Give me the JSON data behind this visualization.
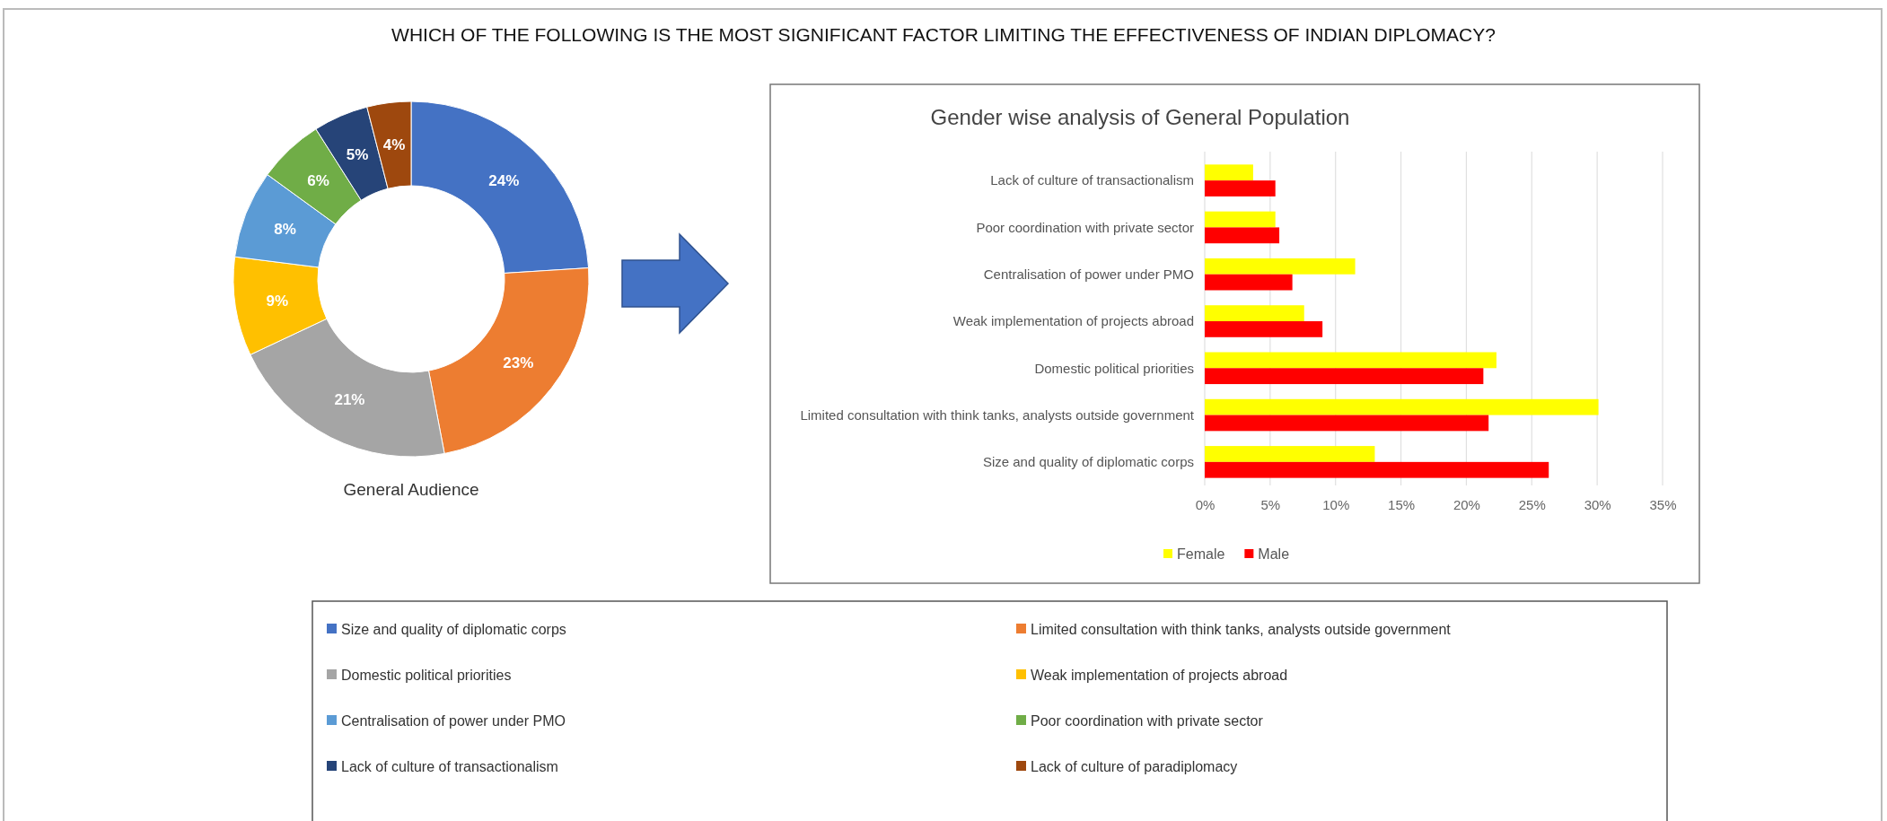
{
  "chart_data": [
    {
      "type": "donut",
      "title": "WHICH OF THE FOLLOWING IS THE MOST SIGNIFICANT FACTOR LIMITING THE EFFECTIVENESS OF INDIAN DIPLOMACY?",
      "annotations": [
        "General Audience"
      ],
      "categories": [
        "Size and quality of diplomatic corps",
        "Limited consultation with think tanks, analysts outside government",
        "Domestic political priorities",
        "Weak implementation of projects abroad",
        "Centralisation of power under PMO",
        "Poor coordination with private sector",
        "Lack of culture of transactionalism",
        "Lack of culture of paradiplomacy"
      ],
      "values": [
        24,
        23,
        21,
        9,
        8,
        6,
        5,
        4
      ],
      "colors": [
        "#4472c4",
        "#ed7d31",
        "#a5a5a5",
        "#ffc000",
        "#5b9bd5",
        "#70ad47",
        "#264478",
        "#9e480e"
      ],
      "value_labels": [
        "24%",
        "23%",
        "21%",
        "9%",
        "8%",
        "6%",
        "5%",
        "4%"
      ],
      "legend": "bottom"
    },
    {
      "type": "bar",
      "title": "Gender wise analysis of General Population",
      "orientation": "horizontal",
      "categories": [
        "Lack of culture of transactionalism",
        "Poor coordination with private sector",
        "Centralisation of power under PMO",
        "Weak implementation of projects abroad",
        "Domestic political priorities",
        "Limited consultation with think tanks, analysts outside government",
        "Size and quality of diplomatic corps"
      ],
      "series": [
        {
          "name": "Female",
          "color": "#ffff00",
          "values": [
            3.7,
            5.4,
            11.5,
            7.6,
            22.3,
            30.1,
            13.0
          ]
        },
        {
          "name": "Male",
          "color": "#ff0000",
          "values": [
            5.4,
            5.7,
            6.7,
            9.0,
            21.3,
            21.7,
            26.3
          ]
        }
      ],
      "xlim": [
        0,
        35
      ],
      "xticks": [
        {
          "value": 0,
          "label": "0%"
        },
        {
          "value": 5,
          "label": "5%"
        },
        {
          "value": 10,
          "label": "10%"
        },
        {
          "value": 15,
          "label": "15%"
        },
        {
          "value": 20,
          "label": "20%"
        },
        {
          "value": 25,
          "label": "25%"
        },
        {
          "value": 30,
          "label": "30%"
        },
        {
          "value": 35,
          "label": "35%"
        }
      ],
      "grid": "x",
      "legend": "bottom"
    }
  ]
}
